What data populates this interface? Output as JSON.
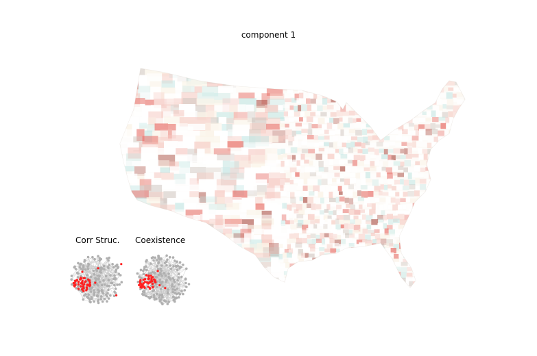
{
  "title": "component 1",
  "map": {
    "region": "contiguous United States counties",
    "palette": {
      "red": "#e8736c",
      "dark_red": "#b05a50",
      "pink": "#f6c9c2",
      "teal": "#bfe6e3",
      "gray": "#cfc6c0",
      "cream": "#fbf4e8"
    }
  },
  "insets": [
    {
      "label": "Corr Struc.",
      "node_color": "#b0b0b0",
      "highlight_color": "#ff2020"
    },
    {
      "label": "Coexistence",
      "node_color": "#b0b0b0",
      "highlight_color": "#ff2020"
    }
  ]
}
